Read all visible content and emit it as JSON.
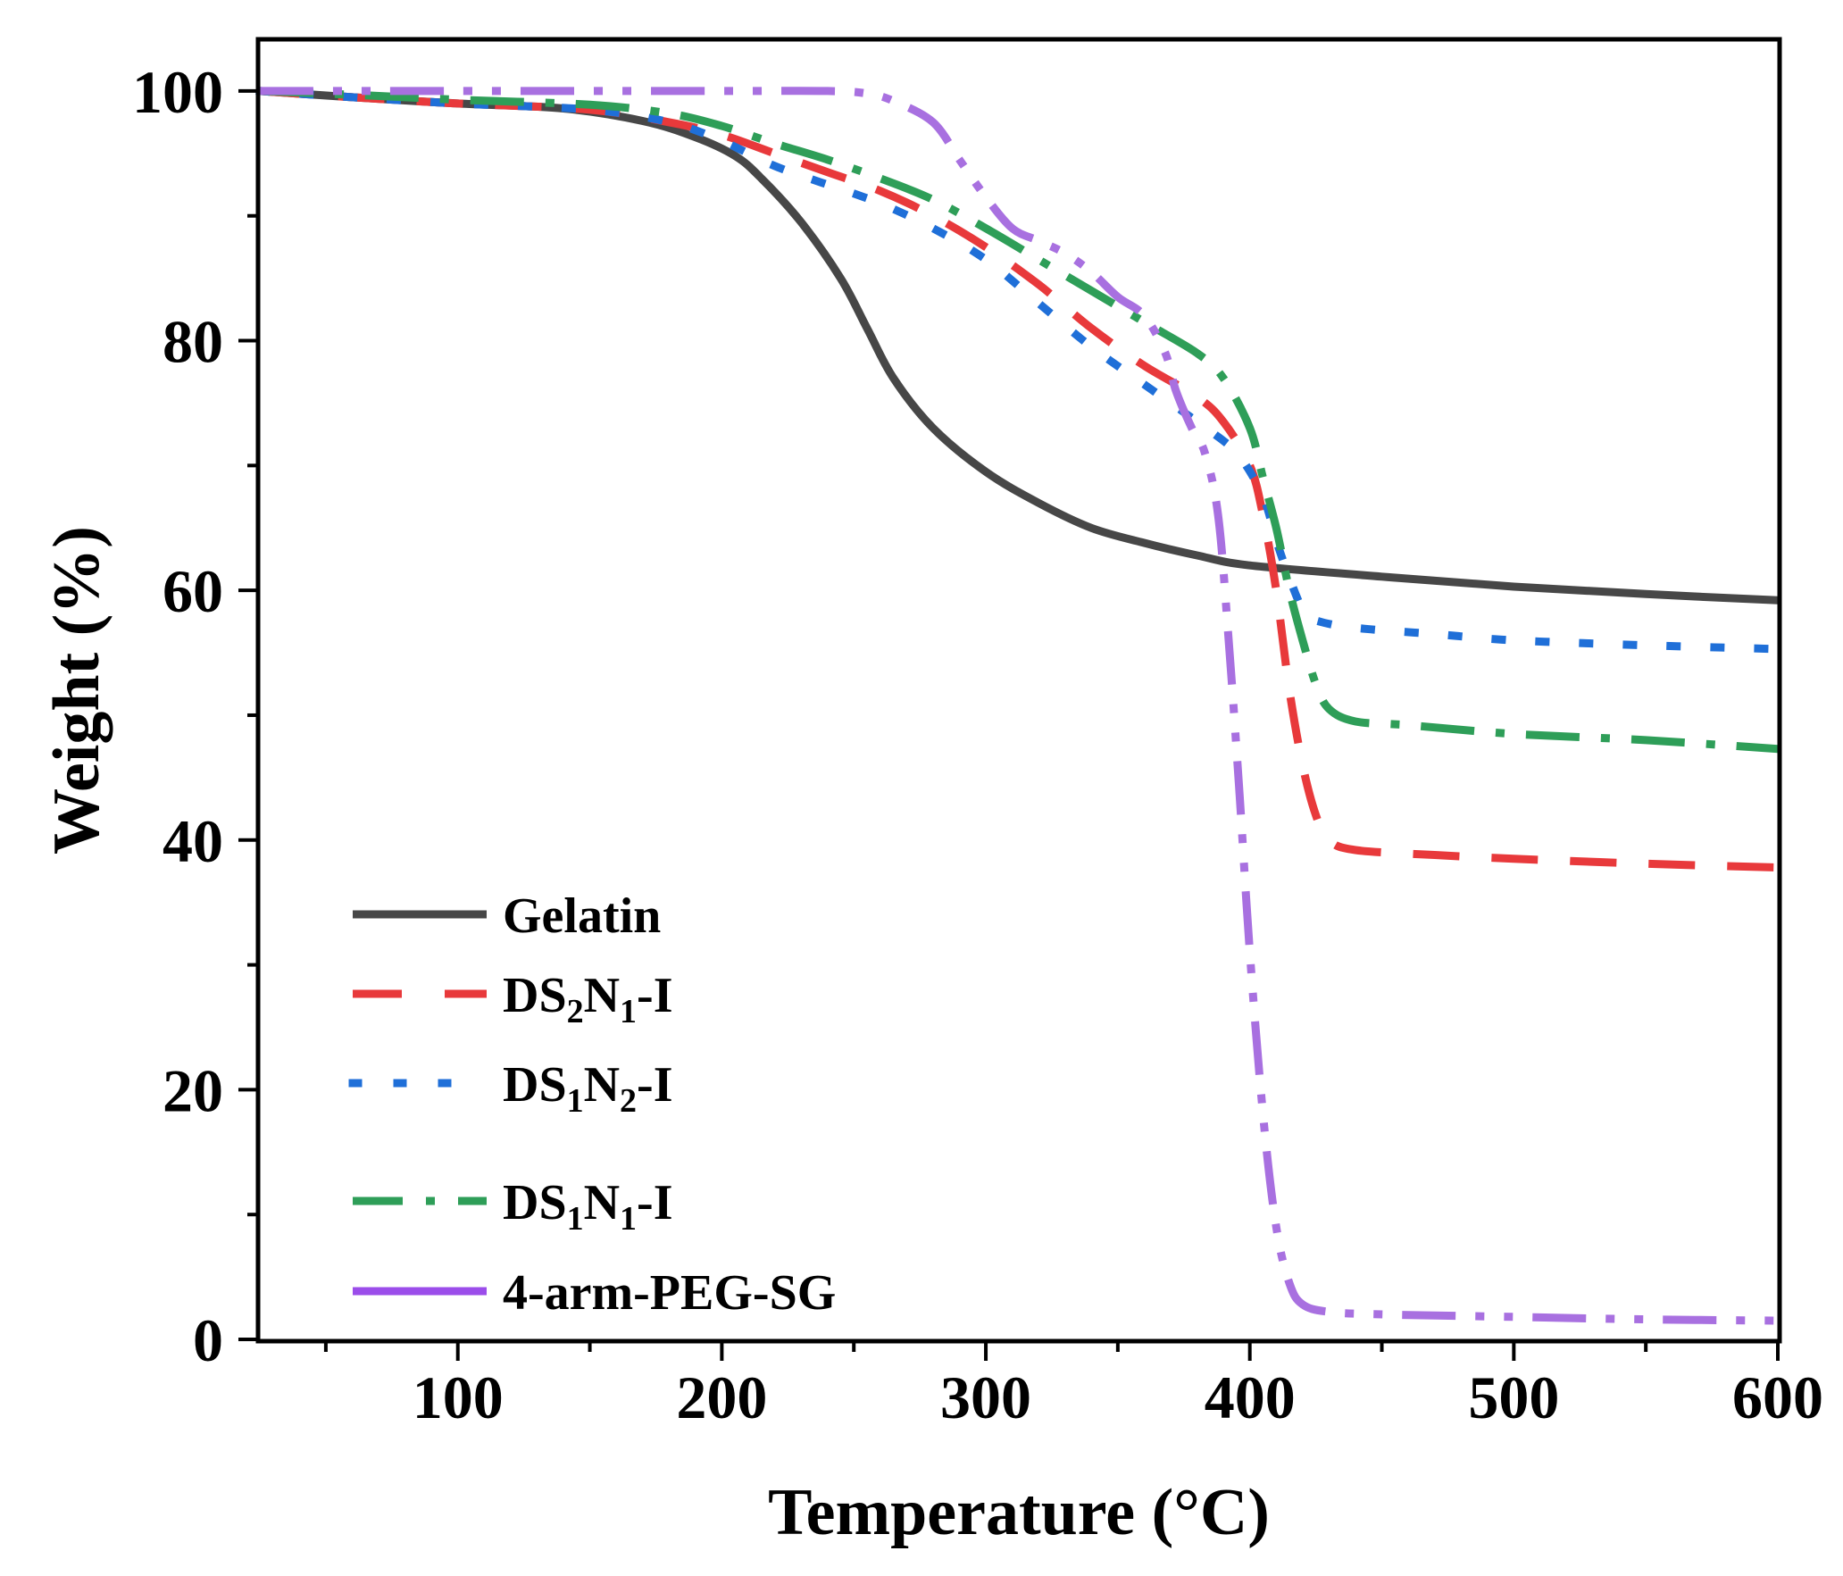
{
  "chart_data": {
    "type": "line",
    "title": "",
    "xlabel": "Temperature (°C)",
    "ylabel": "Weight (%)",
    "xlim": [
      25,
      600
    ],
    "ylim": [
      0,
      104
    ],
    "xticks": [
      100,
      200,
      300,
      400,
      500,
      600
    ],
    "xtick_labels": [
      "100",
      "200",
      "300",
      "400",
      "500",
      "600"
    ],
    "yticks": [
      0,
      20,
      40,
      60,
      80,
      100
    ],
    "ytick_labels": [
      "0",
      "20",
      "40",
      "60",
      "80",
      "100"
    ],
    "grid": false,
    "legend_position": "bottom-left",
    "series": [
      {
        "name": "Gelatin",
        "legend_parts": [
          {
            "t": "Gelatin",
            "sub": false
          }
        ],
        "color": "#474747",
        "style": "solid",
        "points": [
          [
            25,
            100
          ],
          [
            60,
            99.5
          ],
          [
            100,
            99
          ],
          [
            140,
            98.6
          ],
          [
            170,
            97.6
          ],
          [
            190,
            96.3
          ],
          [
            205,
            94.8
          ],
          [
            215,
            93
          ],
          [
            230,
            89.5
          ],
          [
            245,
            85
          ],
          [
            255,
            81
          ],
          [
            265,
            77
          ],
          [
            280,
            73
          ],
          [
            300,
            69.5
          ],
          [
            320,
            67
          ],
          [
            340,
            65
          ],
          [
            360,
            63.8
          ],
          [
            380,
            62.8
          ],
          [
            400,
            62
          ],
          [
            450,
            61.1
          ],
          [
            500,
            60.3
          ],
          [
            550,
            59.7
          ],
          [
            600,
            59.2
          ]
        ]
      },
      {
        "name": "DS2N1-I",
        "legend_parts": [
          {
            "t": "DS",
            "sub": false
          },
          {
            "t": "2",
            "sub": true
          },
          {
            "t": "N",
            "sub": false
          },
          {
            "t": "1",
            "sub": true
          },
          {
            "t": "-I",
            "sub": false
          }
        ],
        "color": "#E8393B",
        "style": "dashed",
        "points": [
          [
            25,
            100
          ],
          [
            60,
            99.5
          ],
          [
            100,
            99
          ],
          [
            150,
            98.5
          ],
          [
            180,
            97.5
          ],
          [
            200,
            96.5
          ],
          [
            220,
            95
          ],
          [
            240,
            93.5
          ],
          [
            260,
            92
          ],
          [
            280,
            90
          ],
          [
            300,
            87.5
          ],
          [
            320,
            84.5
          ],
          [
            340,
            81
          ],
          [
            360,
            78
          ],
          [
            380,
            75.5
          ],
          [
            390,
            73.5
          ],
          [
            400,
            70
          ],
          [
            405,
            66
          ],
          [
            410,
            60
          ],
          [
            415,
            52
          ],
          [
            420,
            46
          ],
          [
            425,
            42
          ],
          [
            430,
            40
          ],
          [
            440,
            39.2
          ],
          [
            470,
            38.8
          ],
          [
            500,
            38.5
          ],
          [
            550,
            38.1
          ],
          [
            600,
            37.8
          ]
        ]
      },
      {
        "name": "DS1N2-I",
        "legend_parts": [
          {
            "t": "DS",
            "sub": false
          },
          {
            "t": "1",
            "sub": true
          },
          {
            "t": "N",
            "sub": false
          },
          {
            "t": "2",
            "sub": true
          },
          {
            "t": "-I",
            "sub": false
          }
        ],
        "color": "#1F6FD8",
        "style": "dotted",
        "points": [
          [
            25,
            100
          ],
          [
            60,
            99.5
          ],
          [
            100,
            99
          ],
          [
            150,
            98.5
          ],
          [
            180,
            97.5
          ],
          [
            200,
            96
          ],
          [
            220,
            94
          ],
          [
            240,
            92.5
          ],
          [
            260,
            91
          ],
          [
            280,
            89
          ],
          [
            300,
            86.5
          ],
          [
            320,
            83
          ],
          [
            340,
            79.5
          ],
          [
            360,
            76.5
          ],
          [
            380,
            73.5
          ],
          [
            395,
            71
          ],
          [
            405,
            67.5
          ],
          [
            410,
            64
          ],
          [
            415,
            61
          ],
          [
            420,
            58.5
          ],
          [
            425,
            57.6
          ],
          [
            440,
            57
          ],
          [
            470,
            56.5
          ],
          [
            500,
            56
          ],
          [
            550,
            55.6
          ],
          [
            600,
            55.3
          ]
        ]
      },
      {
        "name": "DS1N1-I",
        "legend_parts": [
          {
            "t": "DS",
            "sub": false
          },
          {
            "t": "1",
            "sub": true
          },
          {
            "t": "N",
            "sub": false
          },
          {
            "t": "1",
            "sub": true
          },
          {
            "t": "-I",
            "sub": false
          }
        ],
        "color": "#2E9E58",
        "style": "dashdot",
        "points": [
          [
            25,
            100
          ],
          [
            60,
            99.7
          ],
          [
            100,
            99.3
          ],
          [
            150,
            98.9
          ],
          [
            180,
            98.2
          ],
          [
            200,
            97.2
          ],
          [
            220,
            95.8
          ],
          [
            240,
            94.5
          ],
          [
            260,
            93
          ],
          [
            280,
            91.3
          ],
          [
            300,
            89
          ],
          [
            320,
            86.5
          ],
          [
            340,
            84
          ],
          [
            360,
            81.5
          ],
          [
            380,
            79
          ],
          [
            390,
            77
          ],
          [
            400,
            73
          ],
          [
            405,
            69
          ],
          [
            410,
            65
          ],
          [
            415,
            60
          ],
          [
            420,
            56
          ],
          [
            425,
            52.5
          ],
          [
            430,
            50.5
          ],
          [
            440,
            49.5
          ],
          [
            460,
            49.2
          ],
          [
            500,
            48.5
          ],
          [
            550,
            48
          ],
          [
            600,
            47.3
          ]
        ]
      },
      {
        "name": "4-arm-PEG-SG",
        "legend_parts": [
          {
            "t": "4-arm-PEG-SG",
            "sub": false
          }
        ],
        "color": "#A870E0",
        "legend_color": "#9B4DEA",
        "style": "dashdotdot",
        "points": [
          [
            25,
            100
          ],
          [
            100,
            100
          ],
          [
            200,
            100
          ],
          [
            240,
            100
          ],
          [
            255,
            99.8
          ],
          [
            265,
            99.2
          ],
          [
            280,
            97.5
          ],
          [
            290,
            94.5
          ],
          [
            300,
            91.5
          ],
          [
            310,
            89
          ],
          [
            320,
            88
          ],
          [
            330,
            87
          ],
          [
            340,
            85.5
          ],
          [
            350,
            83.5
          ],
          [
            360,
            82
          ],
          [
            368,
            79
          ],
          [
            372,
            76
          ],
          [
            378,
            73
          ],
          [
            383,
            71
          ],
          [
            388,
            66
          ],
          [
            392,
            56
          ],
          [
            396,
            44
          ],
          [
            400,
            31
          ],
          [
            405,
            18
          ],
          [
            410,
            9
          ],
          [
            415,
            4.5
          ],
          [
            420,
            2.8
          ],
          [
            430,
            2.2
          ],
          [
            450,
            2
          ],
          [
            500,
            1.8
          ],
          [
            550,
            1.6
          ],
          [
            600,
            1.5
          ]
        ]
      }
    ]
  }
}
